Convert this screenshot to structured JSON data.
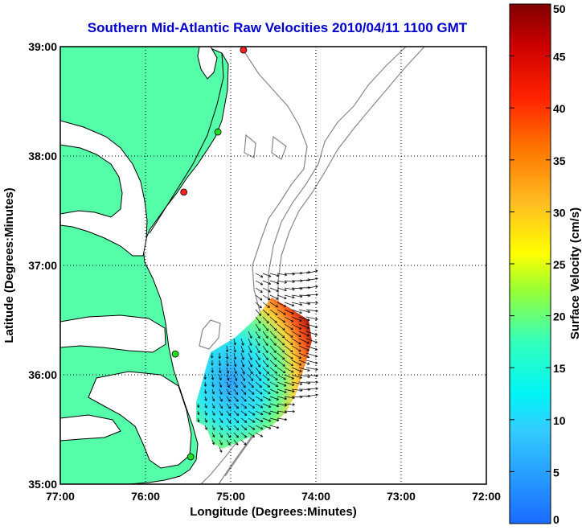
{
  "chart_data": {
    "type": "heatmap",
    "title": "Southern Mid-Atlantic Raw Velocities 2010/04/11 1100 GMT",
    "xlabel": "Longitude (Degrees:Minutes)",
    "ylabel": "Latitude (Degrees:Minutes)",
    "x_ticks": [
      {
        "value": -77,
        "label": "77:00"
      },
      {
        "value": -76,
        "label": "76:00"
      },
      {
        "value": -75,
        "label": "75:00"
      },
      {
        "value": -74,
        "label": "74:00"
      },
      {
        "value": -73,
        "label": "73:00"
      },
      {
        "value": -72,
        "label": "72:00"
      }
    ],
    "y_ticks": [
      {
        "value": 35,
        "label": "35:00"
      },
      {
        "value": 36,
        "label": "36:00"
      },
      {
        "value": 37,
        "label": "37:00"
      },
      {
        "value": 38,
        "label": "38:00"
      },
      {
        "value": 39,
        "label": "39:00"
      }
    ],
    "xlim": [
      -77,
      -72
    ],
    "ylim": [
      35,
      39
    ],
    "grid": true,
    "colorbar": {
      "label": "Surface Velocity (cm/s)",
      "min": 0,
      "max": 50,
      "ticks": [
        "0",
        "5",
        "10",
        "15",
        "20",
        "25",
        "30",
        "35",
        "40",
        "45",
        "50"
      ]
    },
    "stations": [
      {
        "lon": -74.85,
        "lat": 38.97,
        "color": "#ff2020"
      },
      {
        "lon": -75.15,
        "lat": 38.22,
        "color": "#22dd22"
      },
      {
        "lon": -75.55,
        "lat": 37.67,
        "color": "#ff2020"
      },
      {
        "lon": -75.65,
        "lat": 36.19,
        "color": "#22dd22"
      },
      {
        "lon": -75.47,
        "lat": 35.25,
        "color": "#22dd22"
      }
    ],
    "velocity_region": [
      {
        "lon": -75.45,
        "lat": 35.8,
        "speed": 12
      },
      {
        "lon": -75.3,
        "lat": 36.0,
        "speed": 14
      },
      {
        "lon": -75.2,
        "lat": 35.7,
        "speed": 10
      },
      {
        "lon": -75.0,
        "lat": 35.7,
        "speed": 8
      },
      {
        "lon": -74.9,
        "lat": 35.9,
        "speed": 12
      },
      {
        "lon": -74.85,
        "lat": 36.2,
        "speed": 18
      },
      {
        "lon": -74.6,
        "lat": 36.35,
        "speed": 38
      },
      {
        "lon": -74.4,
        "lat": 36.15,
        "speed": 45
      },
      {
        "lon": -74.5,
        "lat": 35.85,
        "speed": 35
      },
      {
        "lon": -74.6,
        "lat": 35.6,
        "speed": 25
      },
      {
        "lon": -75.1,
        "lat": 35.4,
        "speed": 14
      }
    ]
  },
  "land_color": "#55ffaa",
  "grid_color": "#000000",
  "bathymetry_color": "#888888"
}
